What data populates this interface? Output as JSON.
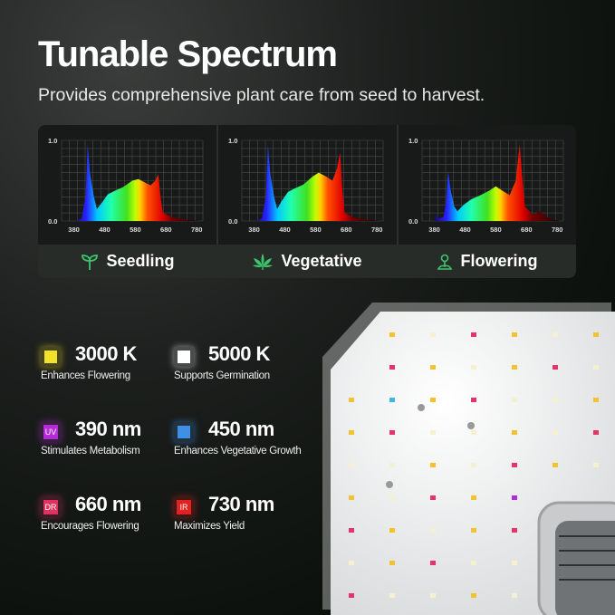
{
  "header": {
    "title": "Tunable Spectrum",
    "subtitle": "Provides comprehensive plant care from seed to harvest."
  },
  "chart_data": [
    {
      "type": "area",
      "name": "Seedling",
      "xticks": [
        380,
        480,
        580,
        680,
        780
      ],
      "yticks": [
        "0.0",
        "1.0"
      ],
      "xlim": [
        340,
        800
      ],
      "ylim": [
        0,
        1
      ],
      "grid": true,
      "points": [
        [
          385,
          0
        ],
        [
          405,
          0.03
        ],
        [
          418,
          0.3
        ],
        [
          425,
          0.95
        ],
        [
          432,
          0.6
        ],
        [
          445,
          0.3
        ],
        [
          455,
          0.15
        ],
        [
          470,
          0.22
        ],
        [
          490,
          0.33
        ],
        [
          510,
          0.37
        ],
        [
          540,
          0.42
        ],
        [
          570,
          0.5
        ],
        [
          590,
          0.52
        ],
        [
          610,
          0.48
        ],
        [
          630,
          0.44
        ],
        [
          645,
          0.5
        ],
        [
          655,
          0.58
        ],
        [
          662,
          0.3
        ],
        [
          670,
          0.1
        ],
        [
          700,
          0.05
        ],
        [
          740,
          0.02
        ],
        [
          790,
          0
        ]
      ]
    },
    {
      "type": "area",
      "name": "Vegetative",
      "xticks": [
        380,
        480,
        580,
        680,
        780
      ],
      "yticks": [
        "0.0",
        "1.0"
      ],
      "xlim": [
        340,
        800
      ],
      "ylim": [
        0,
        1
      ],
      "grid": true,
      "points": [
        [
          385,
          0
        ],
        [
          405,
          0.03
        ],
        [
          418,
          0.3
        ],
        [
          425,
          0.95
        ],
        [
          432,
          0.6
        ],
        [
          445,
          0.3
        ],
        [
          455,
          0.15
        ],
        [
          470,
          0.25
        ],
        [
          490,
          0.36
        ],
        [
          510,
          0.4
        ],
        [
          540,
          0.45
        ],
        [
          570,
          0.55
        ],
        [
          590,
          0.6
        ],
        [
          615,
          0.55
        ],
        [
          635,
          0.5
        ],
        [
          650,
          0.65
        ],
        [
          660,
          0.85
        ],
        [
          667,
          0.4
        ],
        [
          675,
          0.1
        ],
        [
          700,
          0.05
        ],
        [
          740,
          0.02
        ],
        [
          790,
          0
        ]
      ]
    },
    {
      "type": "area",
      "name": "Flowering",
      "xticks": [
        380,
        480,
        580,
        680,
        780
      ],
      "yticks": [
        "0.0",
        "1.0"
      ],
      "xlim": [
        340,
        800
      ],
      "ylim": [
        0,
        1
      ],
      "grid": true,
      "points": [
        [
          380,
          0
        ],
        [
          388,
          0.08
        ],
        [
          395,
          0.03
        ],
        [
          410,
          0.05
        ],
        [
          418,
          0.25
        ],
        [
          425,
          0.62
        ],
        [
          432,
          0.4
        ],
        [
          445,
          0.18
        ],
        [
          455,
          0.12
        ],
        [
          475,
          0.2
        ],
        [
          500,
          0.27
        ],
        [
          530,
          0.32
        ],
        [
          560,
          0.38
        ],
        [
          580,
          0.43
        ],
        [
          600,
          0.38
        ],
        [
          625,
          0.32
        ],
        [
          645,
          0.5
        ],
        [
          658,
          0.95
        ],
        [
          665,
          0.6
        ],
        [
          675,
          0.18
        ],
        [
          700,
          0.08
        ],
        [
          725,
          0.12
        ],
        [
          735,
          0.08
        ],
        [
          760,
          0.02
        ],
        [
          790,
          0
        ]
      ]
    }
  ],
  "stages": [
    {
      "label": "Seedling",
      "icon": "sprout-icon"
    },
    {
      "label": "Vegetative",
      "icon": "leaf-icon"
    },
    {
      "label": "Flowering",
      "icon": "flower-icon"
    }
  ],
  "features": [
    {
      "value": "3000 K",
      "desc": "Enhances Flowering",
      "color": "#f2e32a",
      "tag": ""
    },
    {
      "value": "5000 K",
      "desc": "Supports Germination",
      "color": "#ffffff",
      "tag": ""
    },
    {
      "value": "390 nm",
      "desc": "Stimulates Metabolism",
      "color": "#b52bd8",
      "tag": "UV"
    },
    {
      "value": "450 nm",
      "desc": "Enhances Vegetative Growth",
      "color": "#3f8fe6",
      "tag": ""
    },
    {
      "value": "660 nm",
      "desc": "Encourages Flowering",
      "color": "#e0325f",
      "tag": "DR"
    },
    {
      "value": "730 nm",
      "desc": "Maximizes Yield",
      "color": "#e52020",
      "tag": "IR"
    }
  ]
}
